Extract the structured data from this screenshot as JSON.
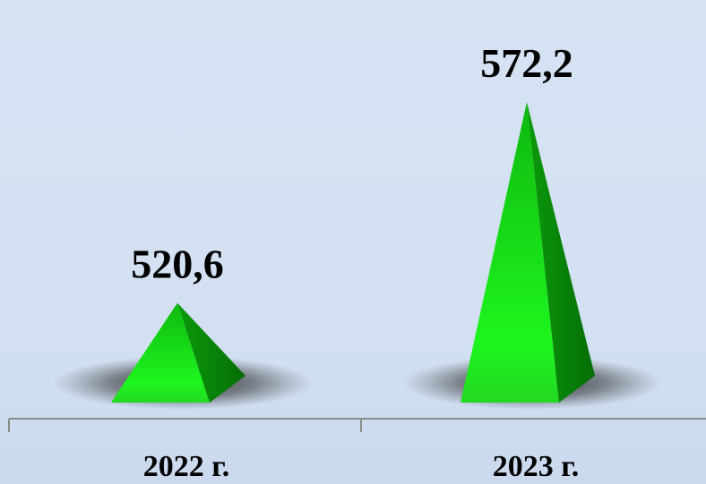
{
  "colors": {
    "background": "#d6e3f3",
    "pyramid_light": "#1ef51e",
    "pyramid_dark": "#0a8a0a",
    "axis": "#8c8c8c"
  },
  "chart_data": {
    "type": "bar",
    "bar_shape": "pyramid",
    "categories": [
      "2022 г.",
      "2023 г."
    ],
    "values": [
      520.6,
      572.2
    ],
    "value_labels": [
      "520,6",
      "572,2"
    ],
    "value_scale_shown": false,
    "value_axis_floor": 495,
    "grid": false,
    "legend": "none"
  }
}
